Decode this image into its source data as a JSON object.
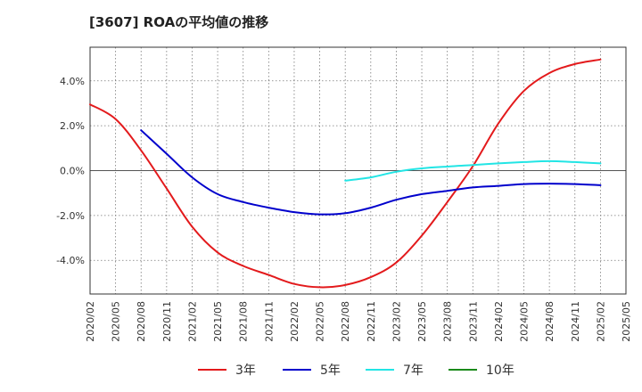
{
  "chart_data": {
    "type": "line",
    "title": "[3607]  ROAの平均値の推移",
    "xlabel": "",
    "ylabel": "",
    "x": [
      "2020/02",
      "2020/05",
      "2020/08",
      "2020/11",
      "2021/02",
      "2021/05",
      "2021/08",
      "2021/11",
      "2022/02",
      "2022/05",
      "2022/08",
      "2022/11",
      "2023/02",
      "2023/05",
      "2023/08",
      "2023/11",
      "2024/02",
      "2024/05",
      "2024/08",
      "2024/11",
      "2025/02",
      "2025/05"
    ],
    "ylim": [
      -5.5,
      5.5
    ],
    "yticks": [
      4.0,
      2.0,
      0.0,
      -2.0,
      -4.0
    ],
    "ytick_labels": [
      "4.0%",
      "2.0%",
      "0.0%",
      "-2.0%",
      "-4.0%"
    ],
    "grid": true,
    "legend_position": "bottom",
    "series": [
      {
        "name": "3年",
        "color": "#e31a1c",
        "values": [
          2.95,
          2.3,
          0.9,
          -0.8,
          -2.5,
          -3.65,
          -4.25,
          -4.65,
          -5.05,
          -5.2,
          -5.1,
          -4.75,
          -4.1,
          -2.9,
          -1.4,
          0.2,
          2.1,
          3.55,
          4.35,
          4.75,
          4.95,
          null
        ]
      },
      {
        "name": "5年",
        "color": "#0000cc",
        "values": [
          null,
          null,
          1.8,
          0.75,
          -0.3,
          -1.05,
          -1.4,
          -1.65,
          -1.85,
          -1.95,
          -1.9,
          -1.65,
          -1.3,
          -1.05,
          -0.9,
          -0.75,
          -0.68,
          -0.6,
          -0.58,
          -0.6,
          -0.65,
          null
        ]
      },
      {
        "name": "7年",
        "color": "#22e5e5",
        "values": [
          null,
          null,
          null,
          null,
          null,
          null,
          null,
          null,
          null,
          null,
          -0.45,
          -0.3,
          -0.05,
          0.1,
          0.18,
          0.25,
          0.32,
          0.38,
          0.42,
          0.38,
          0.32,
          null
        ]
      },
      {
        "name": "10年",
        "color": "#1a8a1a",
        "values": [
          null,
          null,
          null,
          null,
          null,
          null,
          null,
          null,
          null,
          null,
          null,
          null,
          null,
          null,
          null,
          null,
          null,
          null,
          null,
          null,
          null,
          null
        ]
      }
    ]
  }
}
